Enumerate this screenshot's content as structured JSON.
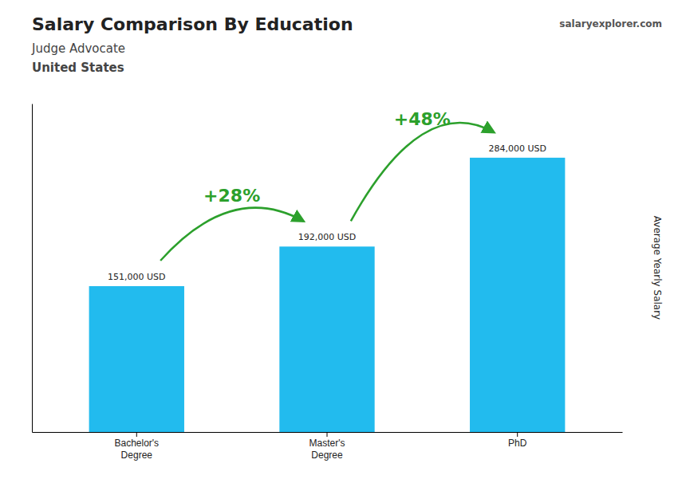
{
  "chart_data": {
    "type": "bar",
    "title": "Salary Comparison By Education",
    "subtitle": [
      "Judge Advocate",
      "United States"
    ],
    "source": "salaryexplorer.com",
    "categories": [
      "Bachelor's\nDegree",
      "Master's\nDegree",
      "PhD"
    ],
    "values": [
      151000,
      192000,
      284000
    ],
    "value_labels": [
      "151,000 USD",
      "192,000 USD",
      "284,000 USD"
    ],
    "data_labels": true,
    "annotations": [
      "+28%",
      "+48%"
    ],
    "ylabel": "Average Yearly Salary",
    "color": "#22bbee",
    "ylim": [
      0,
      340000
    ],
    "tick_labels": "x",
    "grid": false
  }
}
